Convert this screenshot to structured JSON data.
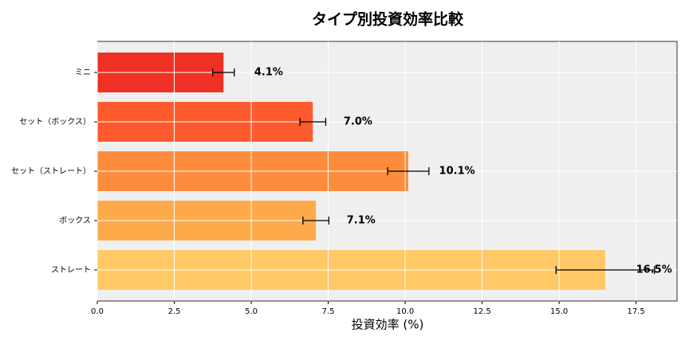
{
  "chart_data": {
    "type": "barh",
    "title": "タイプ別投資効率比較",
    "xlabel": "投資効率 (%)",
    "categories": [
      "ミニ",
      "セット（ボックス）",
      "セット（ストレート）",
      "ボックス",
      "ストレート"
    ],
    "values": [
      4.1,
      7.0,
      10.1,
      7.1,
      16.5
    ],
    "errors": [
      0.35,
      0.42,
      0.67,
      0.42,
      1.6
    ],
    "value_labels": [
      "4.1%",
      "7.0%",
      "10.1%",
      "7.1%",
      "16.5%"
    ],
    "colors": [
      "#ee3124",
      "#fd5a2e",
      "#fd8d3c",
      "#feaa4a",
      "#fec966"
    ],
    "xlim": [
      0,
      18.83
    ],
    "xticks": [
      {
        "value": 0,
        "label": "0.0"
      },
      2.5,
      {
        "value": 5,
        "label": "5.0"
      },
      7.5,
      {
        "value": 10,
        "label": "10.0"
      },
      12.5,
      {
        "value": 15,
        "label": "15.0"
      },
      17.5
    ],
    "grid": true
  }
}
